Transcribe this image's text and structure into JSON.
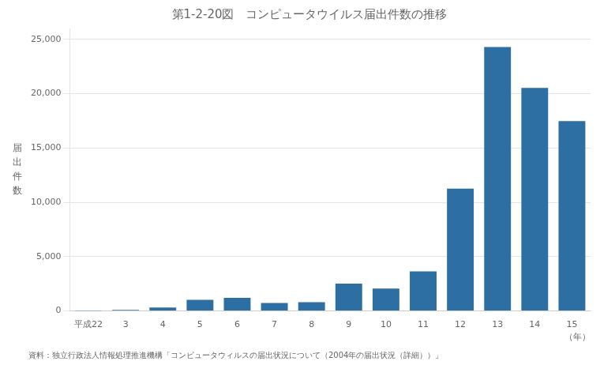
{
  "chart_data": {
    "type": "bar",
    "title": "第1-2-20図　コンピュータウイルス届出件数の推移",
    "categories": [
      "平成22",
      "3",
      "4",
      "5",
      "6",
      "7",
      "8",
      "9",
      "10",
      "11",
      "12",
      "13",
      "14",
      "15"
    ],
    "values": [
      2,
      100,
      320,
      1023,
      1204,
      730,
      810,
      2512,
      2054,
      3645,
      11267,
      24296,
      20537,
      17471
    ],
    "color": "#2e6fa3",
    "y_label": "届\n出\n件\n数",
    "x_label": "（年）",
    "ylim": [
      0,
      26000
    ],
    "yticks": [
      0,
      {
        "value": 5000,
        "label": "5,000"
      },
      {
        "value": 10000,
        "label": "10,000"
      },
      {
        "value": 15000,
        "label": "15,000"
      },
      {
        "value": 20000,
        "label": "20,000"
      },
      {
        "value": 25000,
        "label": "25,000"
      }
    ],
    "grid": true,
    "annotations": [
      "資料：独立行政法人情報処理推進機構「コンピュータウィルスの届出状況について（2004年の届出状況（詳細））」"
    ]
  }
}
